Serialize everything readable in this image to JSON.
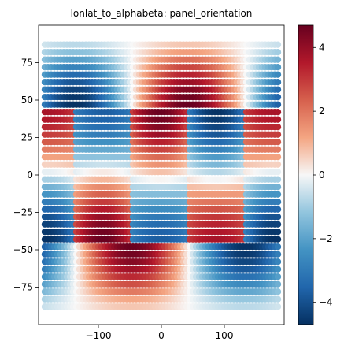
{
  "chart_data": {
    "type": "scatter",
    "title": "lonlat_to_alphabeta: panel_orientation",
    "xlabel": "",
    "ylabel": "",
    "xlim": [
      -195,
      195
    ],
    "ylim": [
      -100,
      100
    ],
    "xticks": [
      -100,
      0,
      100
    ],
    "xtick_labels": [
      "−100",
      "0",
      "100"
    ],
    "yticks": [
      -75,
      -50,
      -25,
      0,
      25,
      50,
      75
    ],
    "ytick_labels": [
      "−75",
      "−50",
      "−25",
      "0",
      "25",
      "50",
      "75"
    ],
    "grid": false,
    "colormap": "RdBu_r",
    "colorbar": {
      "vmin": -4.7,
      "vmax": 4.7,
      "ticks": [
        -4,
        -2,
        0,
        2,
        4
      ],
      "tick_labels": [
        "−4",
        "−2",
        "0",
        "2",
        "4"
      ]
    },
    "point_grid": {
      "lon_range": [
        -185,
        185
      ],
      "lat_range": [
        -88,
        88
      ],
      "spacing": 5
    },
    "description_of_field": "Value encoded by point color across a global lon/lat grid; panels arranged as a cube-sphere net (equatorial band of four panels plus polar caps)."
  }
}
